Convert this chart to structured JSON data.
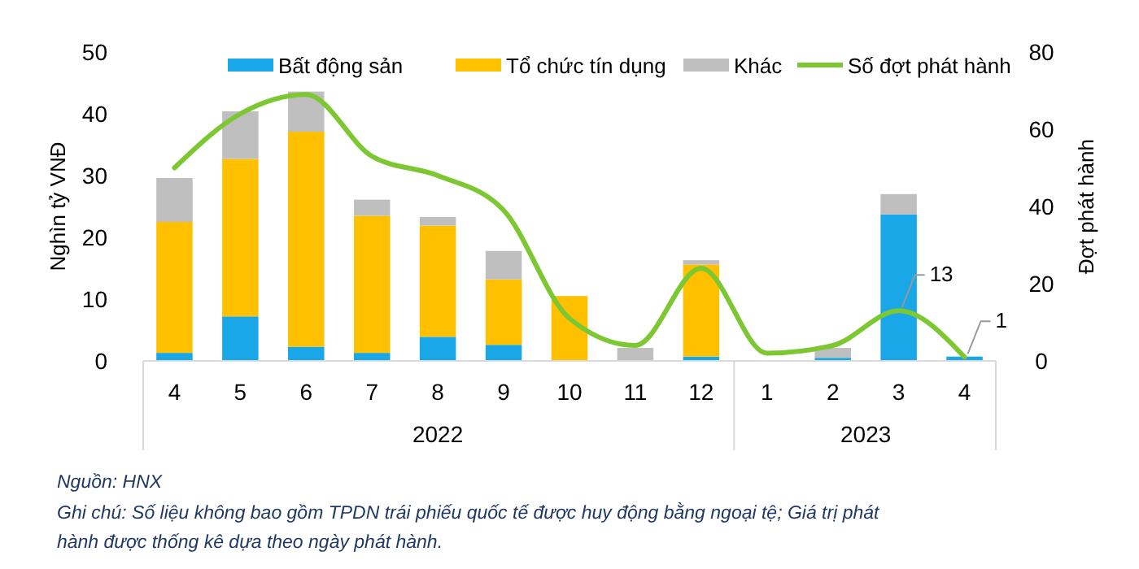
{
  "chart_data": {
    "type": "bar",
    "stacked": true,
    "categories": [
      "4",
      "5",
      "6",
      "7",
      "8",
      "9",
      "10",
      "11",
      "12",
      "1",
      "2",
      "3",
      "4"
    ],
    "series": [
      {
        "name": "Bất động sản",
        "color": "#1aa7e8",
        "values": [
          1.3,
          7.2,
          2.3,
          1.3,
          3.9,
          2.6,
          0,
          0,
          0.7,
          0,
          0.5,
          23.7,
          0.7
        ]
      },
      {
        "name": "Tổ chức tín dụng",
        "color": "#ffc000",
        "values": [
          21.2,
          25.5,
          34.8,
          22.2,
          18.0,
          10.6,
          10.5,
          0,
          14.9,
          0,
          0,
          0,
          0
        ]
      },
      {
        "name": "Khác",
        "color": "#bfbfbf",
        "values": [
          7.1,
          7.7,
          6.5,
          2.6,
          1.4,
          4.6,
          0,
          2.1,
          0.7,
          0,
          1.6,
          3.3,
          0
        ]
      },
      {
        "name": "Số đợt phát hành",
        "type": "line",
        "axis": "y2",
        "color": "#7dc832",
        "values": [
          50,
          64,
          69,
          53,
          48,
          39,
          11,
          4,
          24,
          2,
          4,
          13,
          1
        ],
        "value_labels": [
          null,
          null,
          null,
          null,
          null,
          null,
          null,
          null,
          null,
          null,
          null,
          "13",
          "1"
        ]
      }
    ],
    "ylabel": "Nghìn tỷ VNĐ",
    "y2label": "Đợt phát hành",
    "ylim": [
      0,
      50
    ],
    "yticks": [
      0,
      10,
      20,
      30,
      40,
      50
    ],
    "y2lim": [
      0,
      80
    ],
    "y2ticks": [
      0,
      20,
      40,
      60,
      80
    ],
    "legend": "top",
    "grid": false,
    "annotations": [
      "2022",
      "2023",
      "Nguồn: HNX",
      "Ghi chú: Số liệu không bao gồm TPDN trái phiếu quốc tế được huy động bằng ngoại tệ; Giá trị phát hành được thống kê dựa theo ngày phát hành."
    ]
  }
}
